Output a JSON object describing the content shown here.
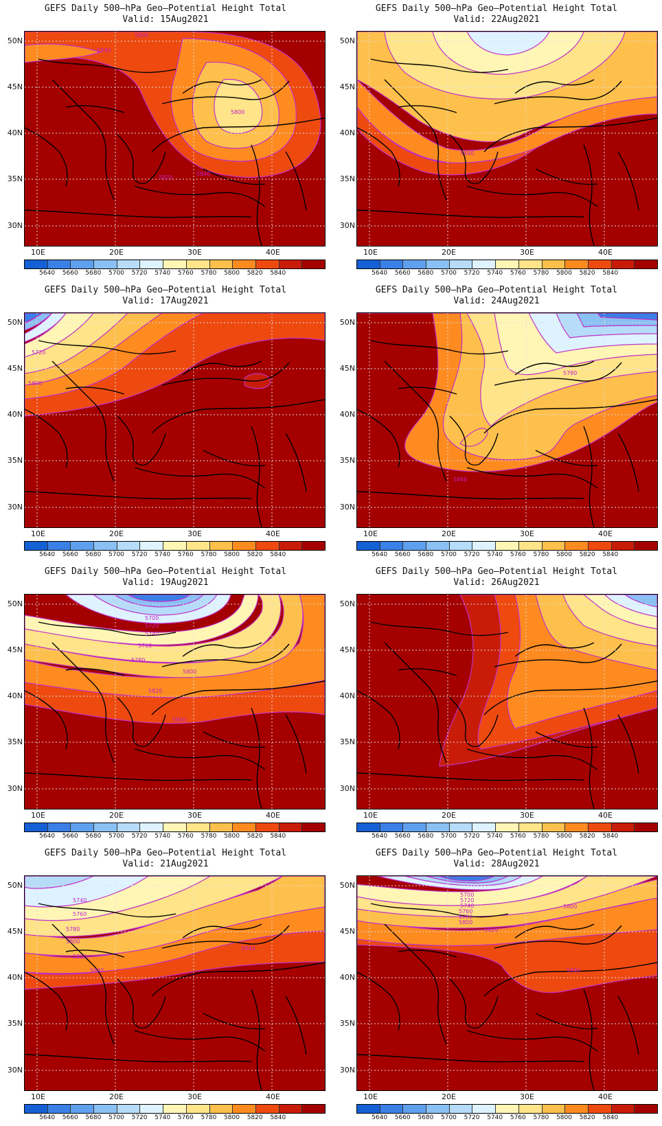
{
  "colorbar": {
    "labels": [
      "5640",
      "5660",
      "5680",
      "5700",
      "5720",
      "5740",
      "5760",
      "5780",
      "5800",
      "5820",
      "5840"
    ],
    "colors": [
      "#1560d4",
      "#3a80e6",
      "#5fa0ee",
      "#8ac0f4",
      "#b6dcfa",
      "#def3ff",
      "#fff6b6",
      "#ffe48a",
      "#fec04c",
      "#fd8b20",
      "#ee4a10",
      "#c81c08",
      "#a50000"
    ]
  },
  "axes": {
    "lat_labels": [
      "50N",
      "45N",
      "40N",
      "35N",
      "30N"
    ],
    "lon_labels": [
      "10E",
      "20E",
      "30E",
      "40E"
    ]
  },
  "panels": [
    {
      "title": "GEFS Daily 500–hPa Geo–Potential Height Total",
      "valid": "Valid: 15Aug2021",
      "contour_labels": [
        "5800",
        "5840",
        "5800",
        "5820",
        "5840"
      ]
    },
    {
      "title": "GEFS Daily 500–hPa Geo–Potential Height Total",
      "valid": "Valid: 22Aug2021",
      "contour_labels": [
        "5840"
      ]
    },
    {
      "title": "GEFS Daily 500–hPa Geo–Potential Height Total",
      "valid": "Valid: 17Aug2021",
      "contour_labels": [
        "5720",
        "5800"
      ]
    },
    {
      "title": "GEFS Daily 500–hPa Geo–Potential Height Total",
      "valid": "Valid: 24Aug2021",
      "contour_labels": [
        "5780",
        "5840"
      ]
    },
    {
      "title": "GEFS Daily 500–hPa Geo–Potential Height Total",
      "valid": "Valid: 19Aug2021",
      "contour_labels": [
        "5700",
        "5720",
        "5740",
        "5760",
        "5780",
        "5800",
        "5820",
        "5840"
      ]
    },
    {
      "title": "GEFS Daily 500–hPa Geo–Potential Height Total",
      "valid": "Valid: 26Aug2021",
      "contour_labels": []
    },
    {
      "title": "GEFS Daily 500–hPa Geo–Potential Height Total",
      "valid": "Valid: 21Aug2021",
      "contour_labels": [
        "5740",
        "5760",
        "5780",
        "5800",
        "5820",
        "5840",
        "5840"
      ]
    },
    {
      "title": "GEFS Daily 500–hPa Geo–Potential Height Total",
      "valid": "Valid: 28Aug2021",
      "contour_labels": [
        "5700",
        "5720",
        "5740",
        "5760",
        "5780",
        "5800",
        "5820",
        "5800",
        "5840"
      ]
    }
  ]
}
